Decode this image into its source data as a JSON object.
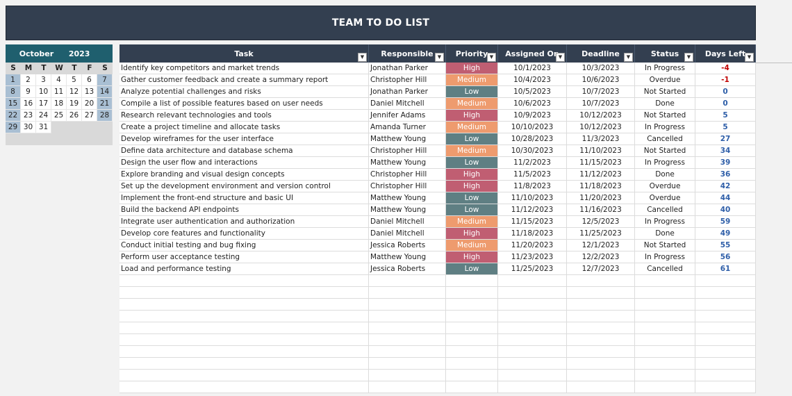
{
  "title": "TEAM TO DO LIST",
  "calendar": {
    "month": "October",
    "year": "2023",
    "weekdays": [
      "S",
      "M",
      "T",
      "W",
      "T",
      "F",
      "S"
    ],
    "weeks": [
      [
        "1",
        "2",
        "3",
        "4",
        "5",
        "6",
        "7"
      ],
      [
        "8",
        "9",
        "10",
        "11",
        "12",
        "13",
        "14"
      ],
      [
        "15",
        "16",
        "17",
        "18",
        "19",
        "20",
        "21"
      ],
      [
        "22",
        "23",
        "24",
        "25",
        "26",
        "27",
        "28"
      ],
      [
        "29",
        "30",
        "31",
        "",
        "",
        "",
        ""
      ]
    ]
  },
  "table": {
    "headers": [
      "Task",
      "Responsible",
      "Priority",
      "Assigned On",
      "Deadline",
      "Status",
      "Days Left"
    ],
    "filter_icon": "dropdown-arrow-icon",
    "rows": [
      {
        "task": "Identify key competitors and market trends",
        "responsible": "Jonathan Parker",
        "priority": "High",
        "assigned": "10/1/2023",
        "deadline": "10/3/2023",
        "status": "In Progress",
        "days": "-4"
      },
      {
        "task": "Gather customer feedback and create a summary report",
        "responsible": "Christopher Hill",
        "priority": "Medium",
        "assigned": "10/4/2023",
        "deadline": "10/6/2023",
        "status": "Overdue",
        "days": "-1"
      },
      {
        "task": "Analyze potential challenges and risks",
        "responsible": "Jonathan Parker",
        "priority": "Low",
        "assigned": "10/5/2023",
        "deadline": "10/7/2023",
        "status": "Not Started",
        "days": "0"
      },
      {
        "task": "Compile a list of possible features based on user needs",
        "responsible": "Daniel Mitchell",
        "priority": "Medium",
        "assigned": "10/6/2023",
        "deadline": "10/7/2023",
        "status": "Done",
        "days": "0"
      },
      {
        "task": "Research relevant technologies and tools",
        "responsible": "Jennifer Adams",
        "priority": "High",
        "assigned": "10/9/2023",
        "deadline": "10/12/2023",
        "status": "Not Started",
        "days": "5"
      },
      {
        "task": "Create a project timeline and allocate tasks",
        "responsible": "Amanda Turner",
        "priority": "Medium",
        "assigned": "10/10/2023",
        "deadline": "10/12/2023",
        "status": "In Progress",
        "days": "5"
      },
      {
        "task": "Develop wireframes for the user interface",
        "responsible": "Matthew Young",
        "priority": "Low",
        "assigned": "10/28/2023",
        "deadline": "11/3/2023",
        "status": "Cancelled",
        "days": "27"
      },
      {
        "task": "Define data architecture and database schema",
        "responsible": "Christopher Hill",
        "priority": "Medium",
        "assigned": "10/30/2023",
        "deadline": "11/10/2023",
        "status": "Not Started",
        "days": "34"
      },
      {
        "task": "Design the user flow and interactions",
        "responsible": "Matthew Young",
        "priority": "Low",
        "assigned": "11/2/2023",
        "deadline": "11/15/2023",
        "status": "In Progress",
        "days": "39"
      },
      {
        "task": "Explore branding and visual design concepts",
        "responsible": "Christopher Hill",
        "priority": "High",
        "assigned": "11/5/2023",
        "deadline": "11/12/2023",
        "status": "Done",
        "days": "36"
      },
      {
        "task": "Set up the development environment and version control",
        "responsible": "Christopher Hill",
        "priority": "High",
        "assigned": "11/8/2023",
        "deadline": "11/18/2023",
        "status": "Overdue",
        "days": "42"
      },
      {
        "task": "Implement the front-end structure and basic UI",
        "responsible": "Matthew Young",
        "priority": "Low",
        "assigned": "11/10/2023",
        "deadline": "11/20/2023",
        "status": "Overdue",
        "days": "44"
      },
      {
        "task": "Build the backend API endpoints",
        "responsible": "Matthew Young",
        "priority": "Low",
        "assigned": "11/12/2023",
        "deadline": "11/16/2023",
        "status": "Cancelled",
        "days": "40"
      },
      {
        "task": "Integrate user authentication and authorization",
        "responsible": "Daniel Mitchell",
        "priority": "Medium",
        "assigned": "11/15/2023",
        "deadline": "12/5/2023",
        "status": "In Progress",
        "days": "59"
      },
      {
        "task": "Develop core features and functionality",
        "responsible": "Daniel Mitchell",
        "priority": "High",
        "assigned": "11/18/2023",
        "deadline": "11/25/2023",
        "status": "Done",
        "days": "49"
      },
      {
        "task": "Conduct initial testing and bug fixing",
        "responsible": "Jessica Roberts",
        "priority": "Medium",
        "assigned": "11/20/2023",
        "deadline": "12/1/2023",
        "status": "Not Started",
        "days": "55"
      },
      {
        "task": "Perform user acceptance testing",
        "responsible": "Matthew Young",
        "priority": "High",
        "assigned": "11/23/2023",
        "deadline": "12/2/2023",
        "status": "In Progress",
        "days": "56"
      },
      {
        "task": "Load and performance testing",
        "responsible": "Jessica Roberts",
        "priority": "Low",
        "assigned": "11/25/2023",
        "deadline": "12/7/2023",
        "status": "Cancelled",
        "days": "61"
      }
    ],
    "empty_rows": 10
  },
  "colors": {
    "header_bg": "#333f50",
    "calendar_header_bg": "#1f5f6e",
    "weekend_bg": "#a9bfd3",
    "priority_high": "#c05e72",
    "priority_medium": "#ee9b6e",
    "priority_low": "#5f7f83",
    "days_positive": "#2e5ea8",
    "days_negative": "#c00000"
  }
}
